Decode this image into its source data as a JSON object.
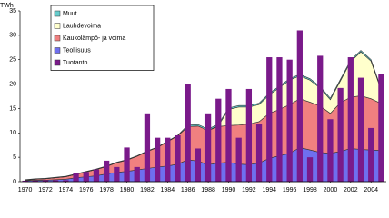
{
  "chart_data": {
    "type": "combo",
    "unit": "TWh",
    "x": [
      1970,
      1971,
      1972,
      1973,
      1974,
      1975,
      1976,
      1977,
      1978,
      1979,
      1980,
      1981,
      1982,
      1983,
      1984,
      1985,
      1986,
      1987,
      1988,
      1989,
      1990,
      1991,
      1992,
      1993,
      1994,
      1995,
      1996,
      1997,
      1998,
      1999,
      2000,
      2001,
      2002,
      2003,
      2004,
      2005
    ],
    "xlim": [
      1969.5,
      2005.5
    ],
    "xticks": [
      1970,
      1972,
      1974,
      1976,
      1978,
      1980,
      1982,
      1984,
      1986,
      1988,
      1990,
      1992,
      1994,
      1996,
      1998,
      2000,
      2002,
      2004
    ],
    "ylim": [
      0,
      35
    ],
    "yticks": [
      0,
      5,
      10,
      15,
      20,
      25,
      30,
      35
    ],
    "legend": "top-left",
    "series": [
      {
        "name": "Teollisuus",
        "type": "area",
        "color": "#6f6fef",
        "values": [
          0.2,
          0.3,
          0.3,
          0.4,
          0.5,
          0.8,
          1,
          1.2,
          1.6,
          1.9,
          2.1,
          2.4,
          2.7,
          3,
          3.2,
          3.6,
          4.5,
          4.2,
          3.5,
          3.8,
          4,
          3.6,
          3.5,
          3.8,
          4.8,
          5.3,
          5.8,
          7,
          6.5,
          6,
          5.8,
          6.2,
          6.8,
          6.6,
          6.5,
          6.4
        ]
      },
      {
        "name": "Kaukolämpö- ja voima",
        "type": "area",
        "color": "#f08080",
        "values": [
          0.1,
          0.2,
          0.3,
          0.4,
          0.5,
          0.7,
          1,
          1.3,
          1.5,
          2,
          2.3,
          2.8,
          3.5,
          4,
          5,
          5.8,
          6.8,
          7.2,
          7,
          7.5,
          7.5,
          8,
          8.3,
          8.5,
          9.2,
          9.5,
          10,
          10,
          9.8,
          9.5,
          8.2,
          10,
          10.5,
          11,
          10.5,
          9.6
        ]
      },
      {
        "name": "Lauhdevoima",
        "type": "area",
        "color": "#ffffcc",
        "values": [
          0,
          0,
          0,
          0,
          0,
          0,
          0,
          0,
          0,
          0,
          0,
          0,
          0,
          0,
          0,
          0,
          0,
          0,
          0,
          0.2,
          3.3,
          3.7,
          3.5,
          3.5,
          3.8,
          4.5,
          5,
          4.7,
          4.5,
          3.7,
          2.8,
          4.5,
          7.3,
          9,
          7.7,
          2.7
        ]
      },
      {
        "name": "Muut",
        "type": "area",
        "color": "#66cccc",
        "values": [
          0.1,
          0.1,
          0.1,
          0.1,
          0.1,
          0.1,
          0.1,
          0.1,
          0.1,
          0.1,
          0.1,
          0.1,
          0.1,
          0.1,
          0.1,
          0.1,
          0.3,
          0.3,
          0.3,
          0.3,
          0.3,
          0.3,
          0.3,
          0.3,
          0.3,
          0.3,
          0.3,
          0.3,
          0.3,
          0.3,
          0.3,
          0.3,
          0.3,
          0.3,
          0.3,
          0.3
        ]
      },
      {
        "name": "Tuotanto",
        "type": "bar",
        "color": "#7a1a8a",
        "values": [
          0.2,
          0.2,
          0.3,
          0.3,
          0.3,
          1.8,
          2,
          2.5,
          4.3,
          3,
          7,
          3,
          14,
          9,
          9,
          9.5,
          20,
          6.8,
          14,
          17,
          19,
          9,
          19,
          11.8,
          25.5,
          25.5,
          25,
          31,
          5,
          25.8,
          12.8,
          19.2,
          25.5,
          21.3,
          11,
          22
        ]
      }
    ]
  }
}
